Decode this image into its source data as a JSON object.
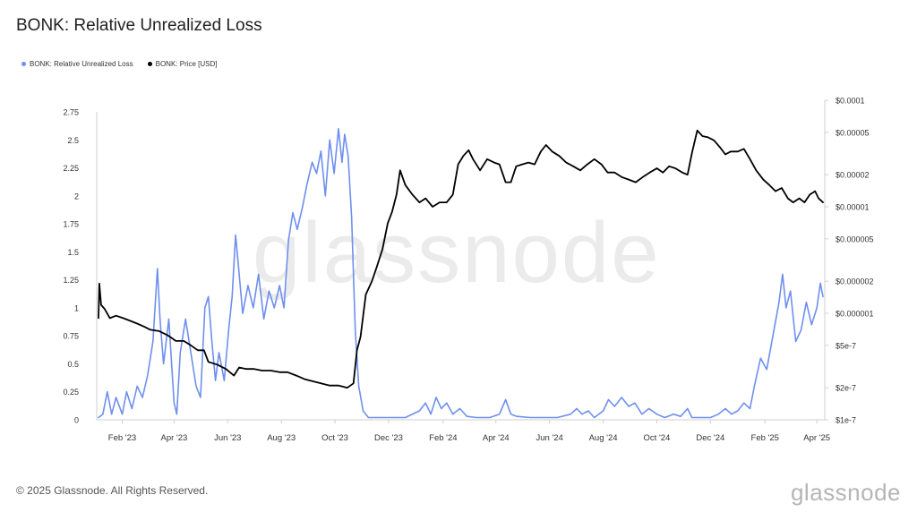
{
  "title": "BONK: Relative Unrealized Loss",
  "legend": [
    {
      "label": "BONK: Relative Unrealized Loss",
      "color": "#6f8fee"
    },
    {
      "label": "BONK: Price [USD]",
      "color": "#000000"
    }
  ],
  "footer": "© 2025 Glassnode. All Rights Reserved.",
  "brand": "glassnode",
  "watermark": "glassnode",
  "chart_data": {
    "type": "line",
    "x_ticks": [
      "Feb '23",
      "Apr '23",
      "Jun '23",
      "Aug '23",
      "Oct '23",
      "Dec '23",
      "Feb '24",
      "Apr '24",
      "Jun '24",
      "Aug '24",
      "Oct '24",
      "Dec '24",
      "Feb '25",
      "Apr '25"
    ],
    "y_left": {
      "ticks": [
        "0",
        "0.25",
        "0.5",
        "0.75",
        "1",
        "1.25",
        "1.5",
        "1.75",
        "2",
        "2.25",
        "2.5",
        "2.75"
      ],
      "range": [
        0,
        2.75
      ]
    },
    "y_right": {
      "scale": "log",
      "ticks": [
        "$1e-7",
        "$2e-7",
        "$5e-7",
        "$0.000001",
        "$0.000002",
        "$0.000005",
        "$0.00001",
        "$0.00002",
        "$0.00005",
        "$0.0001"
      ],
      "range": [
        1e-07,
        0.0001
      ]
    },
    "series": [
      {
        "name": "BONK: Relative Unrealized Loss",
        "axis": "left",
        "color": "#6f8fee",
        "points": [
          [
            "2023-01-05",
            0.02
          ],
          [
            "2023-01-10",
            0.05
          ],
          [
            "2023-01-15",
            0.25
          ],
          [
            "2023-01-20",
            0.05
          ],
          [
            "2023-01-25",
            0.2
          ],
          [
            "2023-02-01",
            0.05
          ],
          [
            "2023-02-06",
            0.25
          ],
          [
            "2023-02-12",
            0.1
          ],
          [
            "2023-02-18",
            0.3
          ],
          [
            "2023-02-24",
            0.2
          ],
          [
            "2023-03-02",
            0.4
          ],
          [
            "2023-03-08",
            0.7
          ],
          [
            "2023-03-13",
            1.35
          ],
          [
            "2023-03-16",
            0.9
          ],
          [
            "2023-03-20",
            0.5
          ],
          [
            "2023-03-26",
            0.9
          ],
          [
            "2023-04-01",
            0.15
          ],
          [
            "2023-04-04",
            0.05
          ],
          [
            "2023-04-08",
            0.6
          ],
          [
            "2023-04-14",
            0.9
          ],
          [
            "2023-04-20",
            0.6
          ],
          [
            "2023-04-26",
            0.3
          ],
          [
            "2023-05-01",
            0.2
          ],
          [
            "2023-05-06",
            1.0
          ],
          [
            "2023-05-10",
            1.1
          ],
          [
            "2023-05-14",
            0.7
          ],
          [
            "2023-05-18",
            0.35
          ],
          [
            "2023-05-22",
            0.6
          ],
          [
            "2023-05-28",
            0.35
          ],
          [
            "2023-06-02",
            0.8
          ],
          [
            "2023-06-06",
            1.1
          ],
          [
            "2023-06-10",
            1.65
          ],
          [
            "2023-06-14",
            1.3
          ],
          [
            "2023-06-18",
            0.95
          ],
          [
            "2023-06-24",
            1.2
          ],
          [
            "2023-06-30",
            1.0
          ],
          [
            "2023-07-06",
            1.3
          ],
          [
            "2023-07-12",
            0.9
          ],
          [
            "2023-07-18",
            1.15
          ],
          [
            "2023-07-24",
            1.0
          ],
          [
            "2023-07-30",
            1.2
          ],
          [
            "2023-08-04",
            1.0
          ],
          [
            "2023-08-09",
            1.6
          ],
          [
            "2023-08-14",
            1.85
          ],
          [
            "2023-08-19",
            1.7
          ],
          [
            "2023-08-25",
            1.9
          ],
          [
            "2023-08-30",
            2.1
          ],
          [
            "2023-09-05",
            2.3
          ],
          [
            "2023-09-10",
            2.2
          ],
          [
            "2023-09-15",
            2.4
          ],
          [
            "2023-09-20",
            2.0
          ],
          [
            "2023-09-25",
            2.5
          ],
          [
            "2023-09-30",
            2.2
          ],
          [
            "2023-10-05",
            2.6
          ],
          [
            "2023-10-09",
            2.3
          ],
          [
            "2023-10-12",
            2.55
          ],
          [
            "2023-10-16",
            2.35
          ],
          [
            "2023-10-20",
            1.8
          ],
          [
            "2023-10-24",
            0.8
          ],
          [
            "2023-10-28",
            0.3
          ],
          [
            "2023-11-02",
            0.08
          ],
          [
            "2023-11-08",
            0.02
          ],
          [
            "2023-11-20",
            0.02
          ],
          [
            "2023-12-05",
            0.02
          ],
          [
            "2023-12-20",
            0.02
          ],
          [
            "2024-01-05",
            0.08
          ],
          [
            "2024-01-12",
            0.15
          ],
          [
            "2024-01-18",
            0.05
          ],
          [
            "2024-01-24",
            0.2
          ],
          [
            "2024-01-30",
            0.1
          ],
          [
            "2024-02-05",
            0.15
          ],
          [
            "2024-02-12",
            0.05
          ],
          [
            "2024-02-20",
            0.1
          ],
          [
            "2024-02-28",
            0.03
          ],
          [
            "2024-03-10",
            0.02
          ],
          [
            "2024-03-25",
            0.02
          ],
          [
            "2024-04-05",
            0.05
          ],
          [
            "2024-04-12",
            0.18
          ],
          [
            "2024-04-18",
            0.05
          ],
          [
            "2024-04-25",
            0.03
          ],
          [
            "2024-05-10",
            0.02
          ],
          [
            "2024-05-25",
            0.02
          ],
          [
            "2024-06-10",
            0.02
          ],
          [
            "2024-06-25",
            0.05
          ],
          [
            "2024-07-02",
            0.1
          ],
          [
            "2024-07-08",
            0.05
          ],
          [
            "2024-07-15",
            0.08
          ],
          [
            "2024-07-22",
            0.02
          ],
          [
            "2024-08-01",
            0.08
          ],
          [
            "2024-08-07",
            0.18
          ],
          [
            "2024-08-14",
            0.12
          ],
          [
            "2024-08-22",
            0.2
          ],
          [
            "2024-08-30",
            0.12
          ],
          [
            "2024-09-06",
            0.15
          ],
          [
            "2024-09-14",
            0.05
          ],
          [
            "2024-09-22",
            0.1
          ],
          [
            "2024-10-01",
            0.05
          ],
          [
            "2024-10-10",
            0.02
          ],
          [
            "2024-10-20",
            0.05
          ],
          [
            "2024-10-28",
            0.03
          ],
          [
            "2024-11-05",
            0.1
          ],
          [
            "2024-11-10",
            0.02
          ],
          [
            "2024-11-20",
            0.02
          ],
          [
            "2024-12-01",
            0.02
          ],
          [
            "2024-12-10",
            0.05
          ],
          [
            "2024-12-18",
            0.1
          ],
          [
            "2024-12-25",
            0.05
          ],
          [
            "2025-01-01",
            0.08
          ],
          [
            "2025-01-08",
            0.15
          ],
          [
            "2025-01-15",
            0.1
          ],
          [
            "2025-01-20",
            0.3
          ],
          [
            "2025-01-27",
            0.55
          ],
          [
            "2025-02-03",
            0.45
          ],
          [
            "2025-02-10",
            0.75
          ],
          [
            "2025-02-17",
            1.05
          ],
          [
            "2025-02-21",
            1.3
          ],
          [
            "2025-02-25",
            1.0
          ],
          [
            "2025-03-02",
            1.15
          ],
          [
            "2025-03-08",
            0.7
          ],
          [
            "2025-03-14",
            0.8
          ],
          [
            "2025-03-20",
            1.05
          ],
          [
            "2025-03-26",
            0.85
          ],
          [
            "2025-04-01",
            1.0
          ],
          [
            "2025-04-05",
            1.22
          ],
          [
            "2025-04-08",
            1.1
          ]
        ]
      },
      {
        "name": "BONK: Price [USD]",
        "axis": "right",
        "color": "#000000",
        "points": [
          [
            "2023-01-05",
            9e-07
          ],
          [
            "2023-01-06",
            1.9e-06
          ],
          [
            "2023-01-08",
            1.2e-06
          ],
          [
            "2023-01-12",
            1.1e-06
          ],
          [
            "2023-01-18",
            9e-07
          ],
          [
            "2023-01-25",
            9.5e-07
          ],
          [
            "2023-02-02",
            9e-07
          ],
          [
            "2023-02-10",
            8.5e-07
          ],
          [
            "2023-02-18",
            8e-07
          ],
          [
            "2023-02-26",
            7.5e-07
          ],
          [
            "2023-03-05",
            7e-07
          ],
          [
            "2023-03-15",
            6.8e-07
          ],
          [
            "2023-03-25",
            6.2e-07
          ],
          [
            "2023-04-03",
            5.5e-07
          ],
          [
            "2023-04-12",
            5.5e-07
          ],
          [
            "2023-04-20",
            5e-07
          ],
          [
            "2023-04-28",
            4.5e-07
          ],
          [
            "2023-05-05",
            4.5e-07
          ],
          [
            "2023-05-10",
            3.5e-07
          ],
          [
            "2023-05-20",
            3.3e-07
          ],
          [
            "2023-05-30",
            3e-07
          ],
          [
            "2023-06-08",
            2.6e-07
          ],
          [
            "2023-06-14",
            3.1e-07
          ],
          [
            "2023-06-22",
            3e-07
          ],
          [
            "2023-07-01",
            3e-07
          ],
          [
            "2023-07-10",
            2.9e-07
          ],
          [
            "2023-07-20",
            2.9e-07
          ],
          [
            "2023-07-30",
            2.8e-07
          ],
          [
            "2023-08-08",
            2.8e-07
          ],
          [
            "2023-08-18",
            2.6e-07
          ],
          [
            "2023-08-28",
            2.4e-07
          ],
          [
            "2023-09-06",
            2.3e-07
          ],
          [
            "2023-09-15",
            2.2e-07
          ],
          [
            "2023-09-25",
            2.1e-07
          ],
          [
            "2023-10-05",
            2.1e-07
          ],
          [
            "2023-10-15",
            2e-07
          ],
          [
            "2023-10-22",
            2.2e-07
          ],
          [
            "2023-10-26",
            4.5e-07
          ],
          [
            "2023-10-30",
            6e-07
          ],
          [
            "2023-11-05",
            1.5e-06
          ],
          [
            "2023-11-12",
            2e-06
          ],
          [
            "2023-11-18",
            2.8e-06
          ],
          [
            "2023-11-24",
            4e-06
          ],
          [
            "2023-11-30",
            7e-06
          ],
          [
            "2023-12-05",
            9e-06
          ],
          [
            "2023-12-10",
            1.3e-05
          ],
          [
            "2023-12-14",
            2.2e-05
          ],
          [
            "2023-12-20",
            1.6e-05
          ],
          [
            "2023-12-28",
            1.3e-05
          ],
          [
            "2024-01-05",
            1.1e-05
          ],
          [
            "2024-01-12",
            1.2e-05
          ],
          [
            "2024-01-20",
            1e-05
          ],
          [
            "2024-01-28",
            1.1e-05
          ],
          [
            "2024-02-05",
            1.1e-05
          ],
          [
            "2024-02-12",
            1.3e-05
          ],
          [
            "2024-02-18",
            2.5e-05
          ],
          [
            "2024-02-24",
            3e-05
          ],
          [
            "2024-03-01",
            3.4e-05
          ],
          [
            "2024-03-06",
            2.8e-05
          ],
          [
            "2024-03-14",
            2.2e-05
          ],
          [
            "2024-03-22",
            2.8e-05
          ],
          [
            "2024-03-30",
            2.6e-05
          ],
          [
            "2024-04-05",
            2.5e-05
          ],
          [
            "2024-04-12",
            1.7e-05
          ],
          [
            "2024-04-18",
            1.7e-05
          ],
          [
            "2024-04-24",
            2.4e-05
          ],
          [
            "2024-05-01",
            2.5e-05
          ],
          [
            "2024-05-08",
            2.6e-05
          ],
          [
            "2024-05-15",
            2.5e-05
          ],
          [
            "2024-05-22",
            3.3e-05
          ],
          [
            "2024-05-28",
            3.8e-05
          ],
          [
            "2024-06-04",
            3.3e-05
          ],
          [
            "2024-06-12",
            3e-05
          ],
          [
            "2024-06-20",
            2.6e-05
          ],
          [
            "2024-06-28",
            2.4e-05
          ],
          [
            "2024-07-06",
            2.2e-05
          ],
          [
            "2024-07-14",
            2.5e-05
          ],
          [
            "2024-07-22",
            2.8e-05
          ],
          [
            "2024-07-30",
            2.5e-05
          ],
          [
            "2024-08-06",
            2.1e-05
          ],
          [
            "2024-08-14",
            2.1e-05
          ],
          [
            "2024-08-22",
            1.9e-05
          ],
          [
            "2024-08-30",
            1.8e-05
          ],
          [
            "2024-09-07",
            1.7e-05
          ],
          [
            "2024-09-15",
            1.9e-05
          ],
          [
            "2024-09-23",
            2.1e-05
          ],
          [
            "2024-10-01",
            2.3e-05
          ],
          [
            "2024-10-08",
            2.1e-05
          ],
          [
            "2024-10-15",
            2.4e-05
          ],
          [
            "2024-10-22",
            2.3e-05
          ],
          [
            "2024-10-30",
            2.1e-05
          ],
          [
            "2024-11-05",
            2e-05
          ],
          [
            "2024-11-10",
            3.2e-05
          ],
          [
            "2024-11-16",
            5.2e-05
          ],
          [
            "2024-11-22",
            4.6e-05
          ],
          [
            "2024-11-28",
            4.5e-05
          ],
          [
            "2024-12-05",
            4.2e-05
          ],
          [
            "2024-12-12",
            3.6e-05
          ],
          [
            "2024-12-18",
            3.1e-05
          ],
          [
            "2024-12-24",
            3.3e-05
          ],
          [
            "2025-01-01",
            3.3e-05
          ],
          [
            "2025-01-08",
            3.5e-05
          ],
          [
            "2025-01-15",
            2.8e-05
          ],
          [
            "2025-01-22",
            2.2e-05
          ],
          [
            "2025-01-30",
            1.8e-05
          ],
          [
            "2025-02-06",
            1.6e-05
          ],
          [
            "2025-02-13",
            1.4e-05
          ],
          [
            "2025-02-20",
            1.5e-05
          ],
          [
            "2025-02-27",
            1.2e-05
          ],
          [
            "2025-03-05",
            1.1e-05
          ],
          [
            "2025-03-12",
            1.2e-05
          ],
          [
            "2025-03-18",
            1.1e-05
          ],
          [
            "2025-03-24",
            1.3e-05
          ],
          [
            "2025-03-30",
            1.4e-05
          ],
          [
            "2025-04-03",
            1.2e-05
          ],
          [
            "2025-04-08",
            1.1e-05
          ]
        ]
      }
    ]
  }
}
